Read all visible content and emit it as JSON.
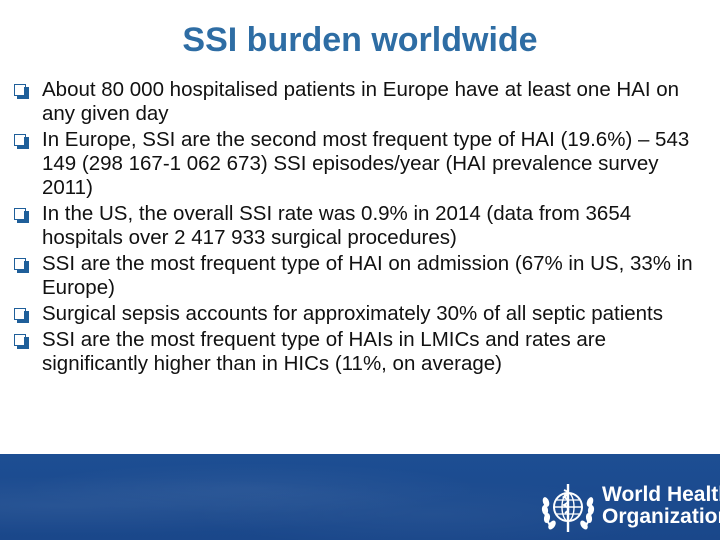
{
  "slide": {
    "title": "SSI burden worldwide",
    "bullets": [
      "About 80 000 hospitalised patients in Europe have at least one HAI on any given day",
      "In Europe, SSI are the second most frequent type of HAI (19.6%) – 543 149 (298 167-1 062 673) SSI episodes/year (HAI prevalence survey 2011)",
      "In the US, the overall SSI rate was 0.9% in 2014 (data from 3654 hospitals over 2 417 933 surgical procedures)",
      "SSI are the most frequent type of HAI on admission (67% in US, 33% in Europe)",
      "Surgical sepsis accounts for approximately 30% of all septic patients",
      "SSI are the most frequent  type of HAIs in LMICs and rates are significantly higher than in HICs (11%, on average)"
    ],
    "bullet_icon": "checkbox-bullet-icon"
  },
  "footer": {
    "logo_line1": "World Health",
    "logo_line2": "Organization",
    "logo_icon": "who-emblem-icon"
  },
  "colors": {
    "title": "#2e6da4",
    "bullet_icon": "#1f5f9a",
    "footer_band": "#1d4e93",
    "text": "#111111"
  }
}
